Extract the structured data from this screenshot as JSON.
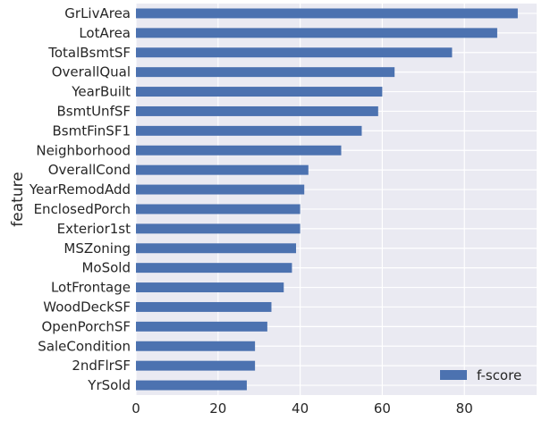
{
  "chart_data": {
    "type": "bar",
    "orientation": "horizontal",
    "title": "",
    "xlabel": "",
    "ylabel": "feature",
    "categories": [
      "GrLivArea",
      "LotArea",
      "TotalBsmtSF",
      "OverallQual",
      "YearBuilt",
      "BsmtUnfSF",
      "BsmtFinSF1",
      "Neighborhood",
      "OverallCond",
      "YearRemodAdd",
      "EnclosedPorch",
      "Exterior1st",
      "MSZoning",
      "MoSold",
      "LotFrontage",
      "WoodDeckSF",
      "OpenPorchSF",
      "SaleCondition",
      "2ndFlrSF",
      "YrSold"
    ],
    "series": [
      {
        "name": "f-score",
        "values": [
          93,
          88,
          77,
          63,
          60,
          59,
          55,
          50,
          42,
          41,
          40,
          40,
          39,
          38,
          36,
          33,
          32,
          29,
          29,
          27
        ]
      }
    ],
    "xlim": [
      0,
      97.6
    ],
    "xticks": [
      0,
      20,
      40,
      60,
      80
    ],
    "grid": true,
    "legend_position": "lower-right",
    "colors": {
      "bar": "#4c72b0",
      "background": "#eaeaf2",
      "grid": "#ffffff",
      "text": "#262626"
    }
  }
}
